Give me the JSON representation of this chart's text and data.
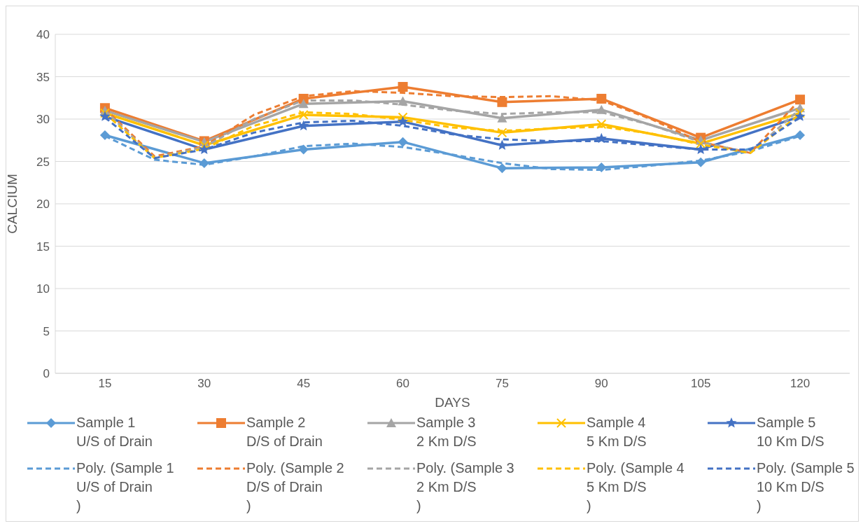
{
  "chart_data": {
    "type": "line",
    "xlabel": "DAYS",
    "ylabel": "CALCIUM",
    "x": [
      15,
      30,
      45,
      60,
      75,
      90,
      105,
      120
    ],
    "xlim": [
      7.5,
      127.5
    ],
    "xticks": [
      15,
      30,
      45,
      60,
      75,
      90,
      105,
      120
    ],
    "ylim": [
      0,
      40
    ],
    "yticks": [
      0,
      5,
      10,
      15,
      20,
      25,
      30,
      35,
      40
    ],
    "grid": "y",
    "legend": "bottom",
    "series": [
      {
        "name": "Sample 1\nU/S of Drain",
        "color": "#5b9bd5",
        "marker": "diamond",
        "values": [
          28.1,
          24.8,
          26.4,
          27.3,
          24.2,
          24.3,
          24.9,
          28.1
        ]
      },
      {
        "name": "Sample 2\nD/S of Drain",
        "color": "#ed7d31",
        "marker": "square",
        "values": [
          31.3,
          27.4,
          32.4,
          33.8,
          32.0,
          32.4,
          27.8,
          32.3
        ]
      },
      {
        "name": "Sample 3\n2 Km D/S",
        "color": "#a5a5a5",
        "marker": "triangle",
        "values": [
          31.0,
          27.3,
          31.8,
          32.1,
          30.1,
          31.1,
          27.5,
          31.3
        ]
      },
      {
        "name": "Sample 4\n5 Km D/S",
        "color": "#ffc000",
        "marker": "cross",
        "values": [
          30.7,
          26.9,
          30.5,
          30.2,
          28.4,
          29.4,
          27.1,
          30.7
        ]
      },
      {
        "name": "Sample 5\n10 Km D/S",
        "color": "#4472c4",
        "marker": "star",
        "values": [
          30.3,
          26.4,
          29.2,
          29.7,
          26.9,
          27.7,
          26.4,
          30.3
        ]
      },
      {
        "name": "Poly. (Sample 1\nU/S of Drain\n)",
        "color": "#5b9bd5",
        "marker": "none",
        "line_style": "dashed",
        "x": [
          15,
          22.5,
          30,
          37.5,
          45,
          52.5,
          60,
          67.5,
          75,
          82.5,
          90,
          97.5,
          105,
          112.5,
          120
        ],
        "values": [
          28.0,
          25.2,
          24.6,
          25.6,
          26.8,
          27.1,
          26.7,
          25.8,
          24.8,
          24.1,
          24.0,
          24.5,
          25.1,
          26.2,
          28.0
        ]
      },
      {
        "name": "Poly. (Sample 2\nD/S of Drain\n)",
        "color": "#ed7d31",
        "marker": "none",
        "line_style": "dashed",
        "x": [
          15,
          22.5,
          30,
          37.5,
          45,
          52.5,
          60,
          67.5,
          75,
          82.5,
          90,
          97.5,
          105,
          112.5,
          120
        ],
        "values": [
          31.2,
          25.6,
          26.8,
          30.5,
          32.7,
          33.3,
          33.1,
          32.7,
          32.6,
          32.7,
          32.2,
          30.0,
          27.3,
          26.0,
          32.3
        ]
      },
      {
        "name": "Poly. (Sample 3\n2 Km D/S\n)",
        "color": "#a5a5a5",
        "marker": "none",
        "line_style": "dashed",
        "x": [
          15,
          22.5,
          30,
          37.5,
          45,
          52.5,
          60,
          67.5,
          75,
          82.5,
          90,
          97.5,
          105,
          112.5,
          120
        ],
        "values": [
          31.0,
          25.4,
          26.7,
          30.0,
          32.2,
          32.2,
          31.7,
          31.0,
          30.6,
          30.8,
          30.8,
          29.3,
          27.3,
          26.0,
          31.2
        ]
      },
      {
        "name": "Poly. (Sample 4\n5 Km D/S\n)",
        "color": "#ffc000",
        "marker": "none",
        "line_style": "dashed",
        "x": [
          15,
          22.5,
          30,
          37.5,
          45,
          52.5,
          60,
          67.5,
          75,
          82.5,
          90,
          97.5,
          105,
          112.5,
          120
        ],
        "values": [
          30.7,
          25.4,
          26.5,
          29.2,
          30.8,
          30.6,
          29.9,
          29.0,
          28.6,
          28.9,
          29.1,
          28.3,
          27.0,
          26.0,
          30.6
        ]
      },
      {
        "name": "Poly. (Sample 5\n10 Km D/S\n)",
        "color": "#4472c4",
        "marker": "none",
        "line_style": "dashed",
        "x": [
          15,
          22.5,
          30,
          37.5,
          45,
          52.5,
          60,
          67.5,
          75,
          82.5,
          90,
          97.5,
          105,
          112.5,
          120
        ],
        "values": [
          30.2,
          25.4,
          26.4,
          28.4,
          29.6,
          29.8,
          29.2,
          28.2,
          27.6,
          27.4,
          27.4,
          26.9,
          26.4,
          26.4,
          30.2
        ]
      }
    ]
  }
}
